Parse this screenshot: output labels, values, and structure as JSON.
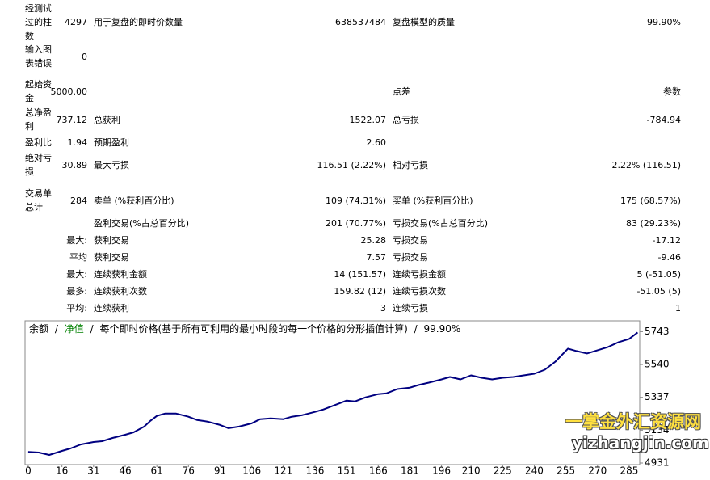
{
  "report": {
    "rows": [
      [
        "经测试过的柱数",
        "4297",
        "用于复盘的即时价数量",
        "638537484",
        "复盘模型的质量",
        "99.90%"
      ],
      [
        "输入图表错误",
        "0",
        null,
        null,
        null,
        null
      ],
      [
        "起始资金",
        "5000.00",
        null,
        null,
        "点差",
        "参数"
      ],
      [
        "总净盈利",
        "737.12",
        "总获利",
        "1522.07",
        "总亏损",
        "-784.94"
      ],
      [
        "盈利比",
        "1.94",
        "预期盈利",
        "2.60",
        null,
        null
      ],
      [
        "绝对亏损",
        "30.89",
        "最大亏损",
        "116.51 (2.22%)",
        "相对亏损",
        "2.22% (116.51)"
      ],
      [
        "交易单总计",
        "284",
        "卖单 (%获利百分比)",
        "109 (74.31%)",
        "买单 (%获利百分比)",
        "175 (68.57%)"
      ],
      [
        null,
        null,
        "盈利交易(%占总百分比)",
        "201 (70.77%)",
        "亏损交易(%占总百分比)",
        "83 (29.23%)"
      ],
      [
        null,
        "最大:",
        "获利交易",
        "25.28",
        "亏损交易",
        "-17.12"
      ],
      [
        null,
        "平均",
        "获利交易",
        "7.57",
        "亏损交易",
        "-9.46"
      ],
      [
        null,
        "最大:",
        "连续获利金额",
        "14 (151.57)",
        "连续亏损金额",
        "5 (-51.05)"
      ],
      [
        null,
        "最多:",
        "连续获利次数",
        "159.82 (12)",
        "连续亏损次数",
        "-51.05 (5)"
      ],
      [
        null,
        "平均:",
        "连续获利",
        "3",
        "连续亏损",
        "1"
      ]
    ]
  },
  "chart_data": {
    "type": "line",
    "legend": {
      "separator": "/",
      "equity": "净值",
      "equity_color": "#008000",
      "text": "每个即时价格(基于所有可利用的最小时段的每一个价格的分形插值计算)",
      "quality": "99.90%"
    },
    "series": [
      {
        "name": "余额",
        "color": "#000080",
        "x": [
          0,
          5,
          10,
          16,
          20,
          25,
          31,
          35,
          40,
          46,
          50,
          55,
          58,
          61,
          65,
          70,
          76,
          80,
          85,
          91,
          95,
          100,
          106,
          110,
          115,
          121,
          125,
          130,
          136,
          140,
          145,
          151,
          155,
          160,
          166,
          170,
          175,
          181,
          185,
          190,
          196,
          200,
          205,
          210,
          215,
          220,
          225,
          230,
          235,
          240,
          245,
          250,
          253,
          256,
          260,
          265,
          270,
          275,
          280,
          285,
          289
        ],
        "values": [
          5000,
          4996,
          4981,
          5006,
          5021,
          5046,
          5061,
          5066,
          5086,
          5106,
          5121,
          5156,
          5192,
          5222,
          5237,
          5237,
          5217,
          5197,
          5187,
          5166,
          5146,
          5156,
          5176,
          5202,
          5207,
          5202,
          5217,
          5227,
          5247,
          5262,
          5287,
          5317,
          5312,
          5337,
          5357,
          5362,
          5388,
          5397,
          5413,
          5428,
          5448,
          5463,
          5448,
          5473,
          5458,
          5448,
          5458,
          5463,
          5473,
          5483,
          5508,
          5558,
          5598,
          5638,
          5623,
          5608,
          5628,
          5648,
          5678,
          5698,
          5738
        ]
      }
    ],
    "xlim": [
      -1.5,
      290
    ],
    "xticks": [
      0,
      16,
      31,
      46,
      61,
      76,
      91,
      106,
      121,
      136,
      151,
      166,
      181,
      196,
      210,
      225,
      240,
      255,
      270,
      285
    ],
    "ylim": [
      4921,
      5810
    ],
    "yticks": [
      4931,
      5134,
      5337,
      5540,
      5743
    ],
    "grid": false
  },
  "watermark": {
    "title": "一掌金外汇资源网",
    "url": "yizhangjin.com"
  }
}
